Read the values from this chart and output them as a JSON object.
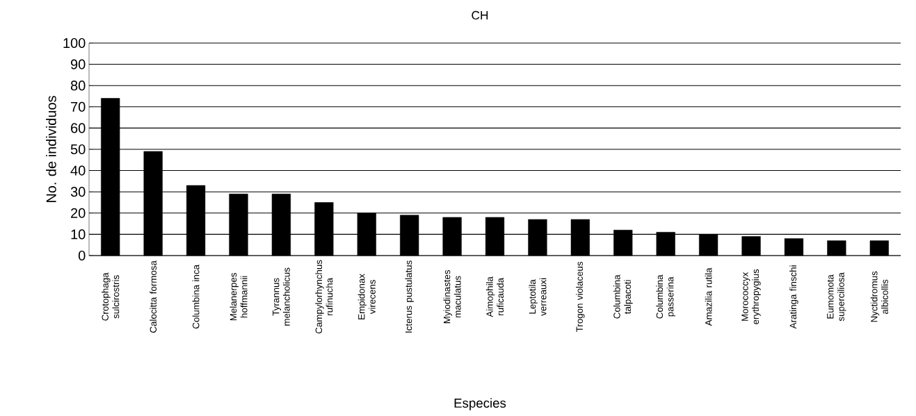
{
  "chart_data": {
    "type": "bar",
    "title": "CH",
    "xlabel": "Especies",
    "ylabel": "No. de individuos",
    "categories": [
      "Crotophaga sulcirostris",
      "Calocitta formosa",
      "Columbina inca",
      "Melanerpes hoffmannii",
      "Tyrannus melancholicus",
      "Campylorhynchus rufinucha",
      "Empidonax virecens",
      "Icterus pustulatus",
      "Myiodinastes maculatus",
      "Aimophila ruficauda",
      "Leptotila verreauxi",
      "Trogon violaceus",
      "Columbina talpacoti",
      "Columbina passerina",
      "Amazilia rutila",
      "Morococcyx erythropygius",
      "Aratinga finschi",
      "Eumomota superciliosa",
      "Nyctidromus albicollis"
    ],
    "values": [
      74,
      49,
      33,
      29,
      29,
      25,
      20,
      19,
      18,
      18,
      17,
      17,
      12,
      11,
      10,
      9,
      8,
      7,
      7
    ],
    "color": "#000000",
    "ylim": [
      0,
      100
    ],
    "yticks": [
      0,
      10,
      20,
      30,
      40,
      50,
      60,
      70,
      80,
      90,
      100
    ],
    "grid": "y"
  }
}
